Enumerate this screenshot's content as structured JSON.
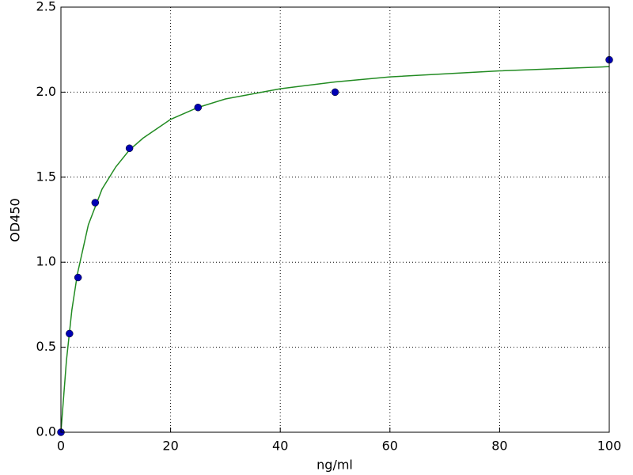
{
  "chart_data": {
    "type": "scatter",
    "xlabel": "ng/ml",
    "ylabel": "OD450",
    "xlim": [
      0,
      100
    ],
    "xticks": [
      0,
      20,
      40,
      60,
      80,
      100
    ],
    "ylim": [
      0,
      2.5
    ],
    "yticks": [
      {
        "value": 0,
        "label": "0.0"
      },
      0.5,
      {
        "value": 1,
        "label": "1.0"
      },
      1.5,
      {
        "value": 2,
        "label": "2.0"
      },
      2.5
    ],
    "grid": true,
    "series": [
      {
        "type": "line",
        "color": "#228b22",
        "x": [
          0,
          1,
          2,
          3,
          5,
          7.5,
          10,
          12.5,
          15,
          20,
          25,
          30,
          40,
          50,
          60,
          80,
          100
        ],
        "values": [
          0,
          0.42,
          0.72,
          0.93,
          1.22,
          1.43,
          1.56,
          1.66,
          1.73,
          1.84,
          1.91,
          1.96,
          2.02,
          2.06,
          2.09,
          2.125,
          2.15
        ]
      },
      {
        "type": "scatter",
        "color": "#0000b4",
        "x": [
          0,
          1.5625,
          3.125,
          6.25,
          12.5,
          25,
          50,
          100
        ],
        "values": [
          0,
          0.58,
          0.91,
          1.35,
          1.67,
          1.91,
          2.0,
          2.19
        ]
      }
    ]
  }
}
